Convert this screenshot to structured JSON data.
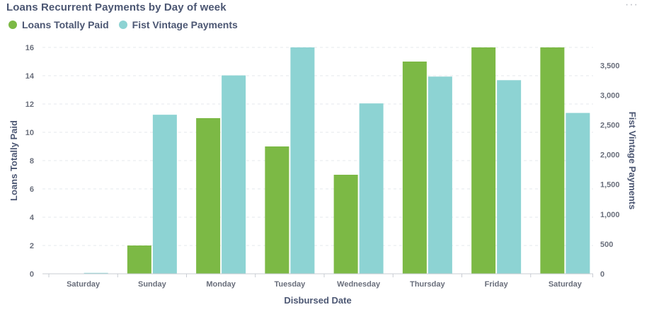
{
  "card": {
    "title": "Loans Recurrent Payments by Day of week",
    "menu_glyph": "···"
  },
  "legend": [
    {
      "label": "Loans Totally Paid",
      "color": "#7cb945"
    },
    {
      "label": "Fist Vintage Payments",
      "color": "#8dd3d3"
    }
  ],
  "chart_data": {
    "type": "bar",
    "title": "Loans Recurrent Payments by Day of week",
    "xlabel": "Disbursed Date",
    "ylabel": "Loans Totally Paid",
    "y2label": "Fist Vintage Payments",
    "categories": [
      "Saturday",
      "Sunday",
      "Monday",
      "Tuesday",
      "Wednesday",
      "Thursday",
      "Friday",
      "Saturday"
    ],
    "series": [
      {
        "name": "Loans Totally Paid",
        "axis": "left",
        "color": "#7cb945",
        "values": [
          0,
          2,
          11,
          9,
          7,
          15,
          16,
          16
        ]
      },
      {
        "name": "Fist Vintage Payments",
        "axis": "right",
        "color": "#8dd3d3",
        "values": [
          15,
          2670,
          3330,
          3800,
          2860,
          3310,
          3250,
          2700
        ]
      }
    ],
    "ylim": [
      0,
      16
    ],
    "yticks": [
      "0",
      "2",
      "4",
      "6",
      "8",
      "10",
      "12",
      "14",
      "16"
    ],
    "y2lim": [
      0,
      3800
    ],
    "y2ticks": [
      "0",
      "500",
      "1,000",
      "1,500",
      "2,000",
      "2,500",
      "3,000",
      "3,500"
    ],
    "y2tick_values": [
      0,
      500,
      1000,
      1500,
      2000,
      2500,
      3000,
      3500
    ],
    "grid": true
  }
}
